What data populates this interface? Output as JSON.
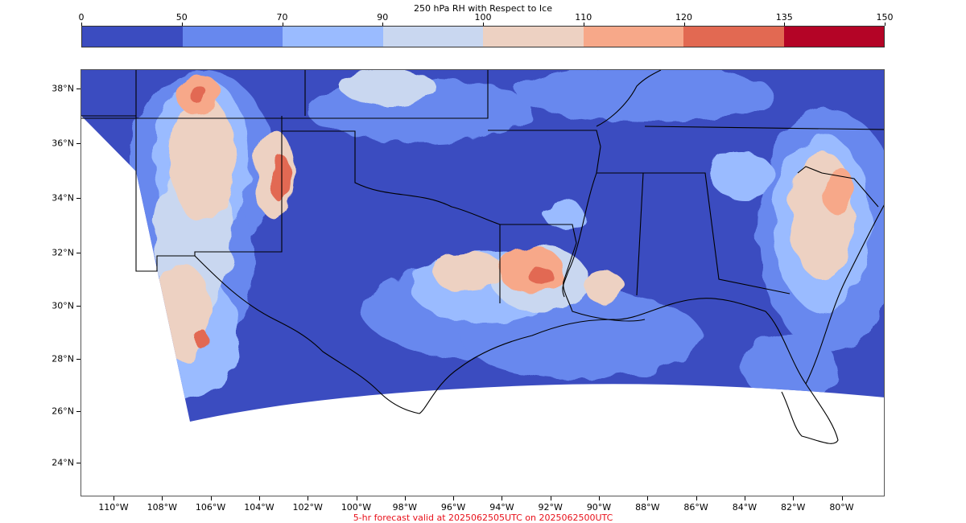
{
  "colorbar": {
    "title": "250 hPa RH with Respect to Ice",
    "ticks": [
      "0",
      "50",
      "70",
      "90",
      "100",
      "110",
      "120",
      "135",
      "150"
    ],
    "colors": [
      "#3b4cc0",
      "#6788ee",
      "#9abbff",
      "#c9d7f0",
      "#edd1c2",
      "#f7a889",
      "#e26952",
      "#b40426"
    ]
  },
  "map": {
    "lat_labels": [
      "38°N",
      "36°N",
      "34°N",
      "32°N",
      "30°N",
      "28°N",
      "26°N",
      "24°N"
    ],
    "lon_labels": [
      "110°W",
      "108°W",
      "106°W",
      "104°W",
      "102°W",
      "100°W",
      "98°W",
      "96°W",
      "94°W",
      "92°W",
      "90°W",
      "88°W",
      "86°W",
      "84°W",
      "82°W",
      "80°W"
    ],
    "ocean_color": "#ffffff",
    "boundary_color": "#000000"
  },
  "footer": {
    "text": "5-hr forecast valid at 2025062505UTC on 2025062500UTC",
    "color": "#e8101a"
  }
}
